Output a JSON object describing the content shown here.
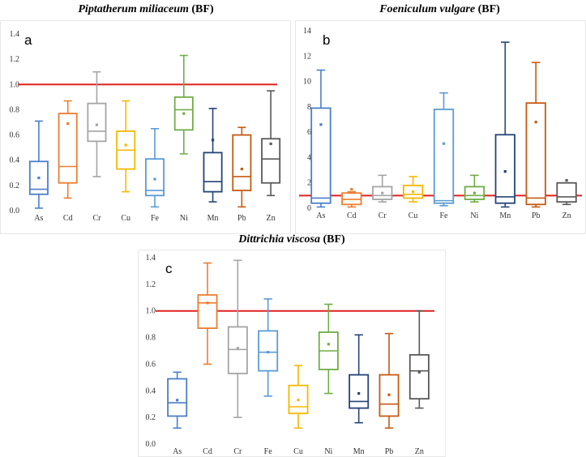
{
  "colors": {
    "As": "#4a7fc9",
    "Cd": "#ed7d31",
    "Cr": "#a5a5a5",
    "Cu": "#f5b800",
    "Fe": "#5b9bd5",
    "Ni": "#70ad47",
    "Mn": "#264478",
    "Pb": "#c55a11",
    "Zn": "#595959",
    "reference": "#e02020"
  },
  "chart_data": [
    {
      "id": "a",
      "type": "box",
      "label": "a",
      "title_italic": "Piptatherum miliaceum",
      "title_rest": " (BF)",
      "ylim": [
        0,
        1.4
      ],
      "yticks": [
        "0.0",
        "0.2",
        "0.4",
        "0.6",
        "0.8",
        "1.0",
        "1.2",
        "1.4"
      ],
      "reference_line": 1.0,
      "categories": [
        "As",
        "Cd",
        "Cr",
        "Cu",
        "Fe",
        "Ni",
        "Mn",
        "Pb",
        "Zn"
      ],
      "boxes": [
        {
          "min": 0.02,
          "q1": 0.13,
          "median": 0.17,
          "q3": 0.39,
          "max": 0.71,
          "mean": 0.26
        },
        {
          "min": 0.1,
          "q1": 0.22,
          "median": 0.35,
          "q3": 0.77,
          "max": 0.87,
          "mean": 0.69
        },
        {
          "min": 0.27,
          "q1": 0.55,
          "median": 0.63,
          "q3": 0.85,
          "max": 1.1,
          "mean": 0.68
        },
        {
          "min": 0.15,
          "q1": 0.33,
          "median": 0.48,
          "q3": 0.63,
          "max": 0.87,
          "mean": 0.52
        },
        {
          "min": 0.03,
          "q1": 0.12,
          "median": 0.16,
          "q3": 0.41,
          "max": 0.65,
          "mean": 0.25
        },
        {
          "min": 0.45,
          "q1": 0.64,
          "median": 0.8,
          "q3": 0.9,
          "max": 1.23,
          "mean": 0.77
        },
        {
          "min": 0.07,
          "q1": 0.15,
          "median": 0.23,
          "q3": 0.46,
          "max": 0.81,
          "mean": 0.56
        },
        {
          "min": 0.03,
          "q1": 0.16,
          "median": 0.27,
          "q3": 0.6,
          "max": 0.66,
          "mean": 0.33
        },
        {
          "min": 0.12,
          "q1": 0.22,
          "median": 0.41,
          "q3": 0.57,
          "max": 0.95,
          "mean": 0.53
        }
      ]
    },
    {
      "id": "b",
      "type": "box",
      "label": "b",
      "title_italic": "Foeniculum vulgare",
      "title_rest": " (BF)",
      "ylim": [
        0,
        14
      ],
      "yticks": [
        "0",
        "2",
        "4",
        "6",
        "8",
        "10",
        "12",
        "14"
      ],
      "reference_line": 1.0,
      "categories": [
        "As",
        "Cd",
        "Cr",
        "Cu",
        "Fe",
        "Ni",
        "Mn",
        "Pb",
        "Zn"
      ],
      "boxes": [
        {
          "min": 0.1,
          "q1": 0.4,
          "median": 0.8,
          "q3": 7.9,
          "max": 10.9,
          "mean": 6.6
        },
        {
          "min": 0.1,
          "q1": 0.3,
          "median": 0.7,
          "q3": 1.2,
          "max": 1.3,
          "mean": 1.5
        },
        {
          "min": 0.5,
          "q1": 0.7,
          "median": 1.0,
          "q3": 1.7,
          "max": 2.6,
          "mean": 1.2
        },
        {
          "min": 0.5,
          "q1": 0.8,
          "median": 1.1,
          "q3": 1.8,
          "max": 2.5,
          "mean": 1.3
        },
        {
          "min": 0.2,
          "q1": 0.4,
          "median": 0.6,
          "q3": 7.8,
          "max": 9.1,
          "mean": 5.1
        },
        {
          "min": 0.5,
          "q1": 0.7,
          "median": 1.0,
          "q3": 1.7,
          "max": 2.6,
          "mean": 1.2
        },
        {
          "min": 0.1,
          "q1": 0.4,
          "median": 0.9,
          "q3": 5.8,
          "max": 13.1,
          "mean": 2.9
        },
        {
          "min": 0.1,
          "q1": 0.3,
          "median": 0.8,
          "q3": 8.3,
          "max": 11.5,
          "mean": 6.8
        },
        {
          "min": 0.3,
          "q1": 0.5,
          "median": 0.9,
          "q3": 2.0,
          "max": 2.0,
          "mean": 2.2
        }
      ]
    },
    {
      "id": "c",
      "type": "box",
      "label": "c",
      "title_italic": "Dittrichia viscosa",
      "title_rest": " (BF)",
      "ylim": [
        0,
        1.4
      ],
      "yticks": [
        "0.0",
        "0.2",
        "0.4",
        "0.6",
        "0.8",
        "1.0",
        "1.2",
        "1.4"
      ],
      "reference_line": 1.0,
      "categories": [
        "As",
        "Cd",
        "Cr",
        "Fe",
        "Cu",
        "Ni",
        "Mn",
        "Pb",
        "Zn"
      ],
      "boxes": [
        {
          "min": 0.12,
          "q1": 0.21,
          "median": 0.31,
          "q3": 0.49,
          "max": 0.54,
          "mean": 0.33
        },
        {
          "min": 0.6,
          "q1": 0.87,
          "median": 1.06,
          "q3": 1.12,
          "max": 1.36,
          "mean": 1.06
        },
        {
          "min": 0.2,
          "q1": 0.53,
          "median": 0.71,
          "q3": 0.88,
          "max": 1.38,
          "mean": 0.72
        },
        {
          "min": 0.36,
          "q1": 0.55,
          "median": 0.69,
          "q3": 0.85,
          "max": 1.09,
          "mean": 0.69
        },
        {
          "min": 0.12,
          "q1": 0.23,
          "median": 0.28,
          "q3": 0.44,
          "max": 0.59,
          "mean": 0.33
        },
        {
          "min": 0.38,
          "q1": 0.56,
          "median": 0.7,
          "q3": 0.84,
          "max": 1.05,
          "mean": 0.75
        },
        {
          "min": 0.16,
          "q1": 0.27,
          "median": 0.32,
          "q3": 0.52,
          "max": 0.82,
          "mean": 0.38
        },
        {
          "min": 0.12,
          "q1": 0.21,
          "median": 0.3,
          "q3": 0.52,
          "max": 0.83,
          "mean": 0.37
        },
        {
          "min": 0.27,
          "q1": 0.34,
          "median": 0.55,
          "q3": 0.67,
          "max": 1.0,
          "mean": 0.54
        }
      ]
    }
  ]
}
